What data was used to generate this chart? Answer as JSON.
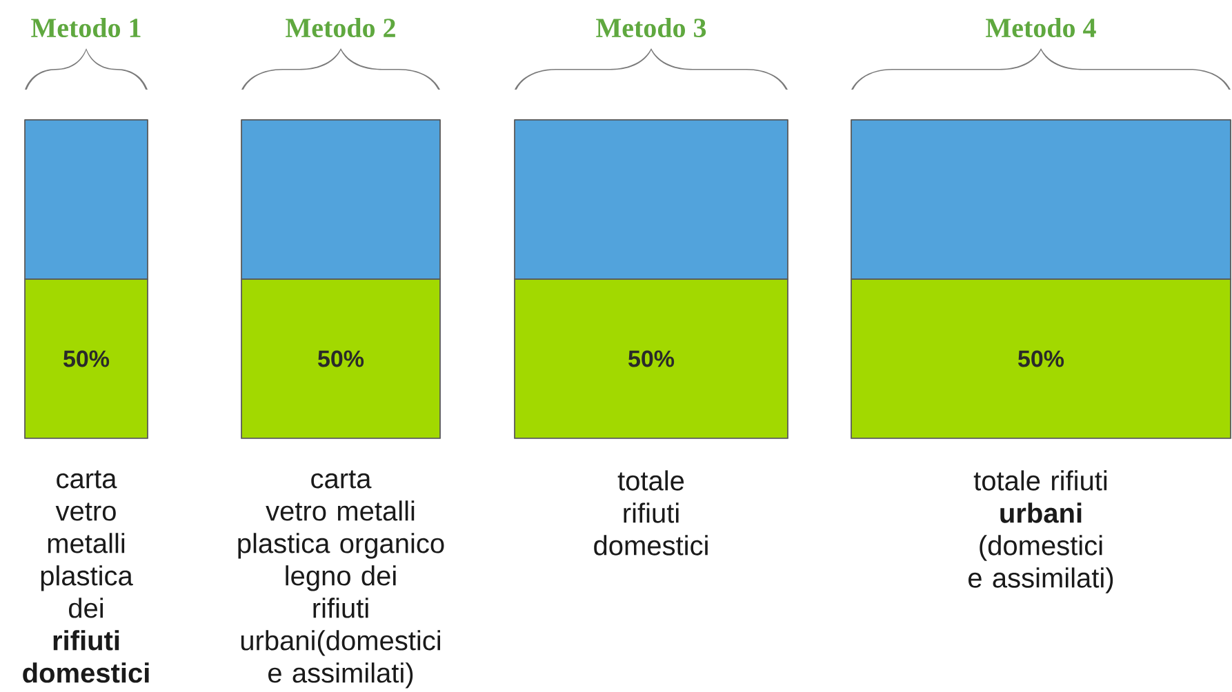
{
  "chart_data": {
    "type": "bar",
    "stacked": true,
    "categories": [
      "Metodo 1",
      "Metodo 2",
      "Metodo 3",
      "Metodo 4"
    ],
    "series": [
      {
        "color": "#a2d900",
        "values": [
          50,
          50,
          50,
          50
        ],
        "value_labels": [
          "50%",
          "50%",
          "50%",
          "50%"
        ]
      },
      {
        "color": "#52a3dc",
        "values": [
          50,
          50,
          50,
          50
        ]
      }
    ],
    "annotations": [
      "carta\nvetro\nmetalli\nplastica\ndei\n**rifiuti**\n**domestici**",
      "carta\nvetro metalli\nplastica organico\nlegno dei\nrifiuti\nurbani(domestici\ne assimilati)",
      "totale\nrifiuti\ndomestici",
      "totale rifiuti\n**urbani**\n(domestici\ne assimilati)"
    ]
  }
}
